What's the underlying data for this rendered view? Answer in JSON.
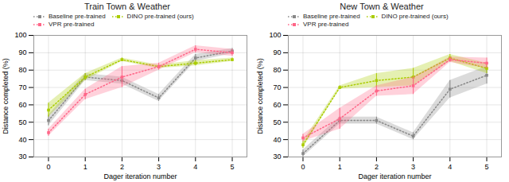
{
  "chart_data": [
    {
      "type": "line",
      "title": "Train Town & Weather",
      "xlabel": "Dager iteration number",
      "ylabel": "Distance completed (%)",
      "x": [
        0,
        1,
        2,
        3,
        4,
        5
      ],
      "series": [
        {
          "name": "Baseline pre-trained",
          "color": "#888888",
          "marker": "square",
          "line_style": "dotted",
          "values": [
            51,
            76,
            74,
            64,
            87,
            91
          ],
          "errors": [
            3,
            2,
            2,
            2,
            2,
            1.5
          ]
        },
        {
          "name": "DINO pre-trained (ours)",
          "color": "#aacc00",
          "marker": "square",
          "line_style": "dotted",
          "values": [
            57,
            76,
            86,
            82,
            84,
            86
          ],
          "errors": [
            4,
            2,
            1,
            1,
            1.5,
            1
          ]
        },
        {
          "name": "VPR pre-trained",
          "color": "#ff6688",
          "marker": "square",
          "line_style": "dotted",
          "values": [
            44,
            66,
            76,
            82,
            92,
            90
          ],
          "errors": [
            2,
            3,
            6,
            2,
            2,
            2
          ]
        }
      ],
      "xlim": [
        -0.4,
        5.4
      ],
      "xticks": [
        0,
        1,
        2,
        3,
        4,
        5
      ],
      "ylim": [
        30,
        100
      ],
      "yticks": [
        30,
        40,
        50,
        60,
        70,
        80,
        90,
        100
      ],
      "grid": true,
      "legend": "upper left"
    },
    {
      "type": "line",
      "title": "New Town & Weather",
      "xlabel": "Dager iteration number",
      "ylabel": "Distance completed (%)",
      "x": [
        0,
        1,
        2,
        3,
        4,
        5
      ],
      "series": [
        {
          "name": "Baseline pre-trained",
          "color": "#888888",
          "marker": "square",
          "line_style": "dotted",
          "values": [
            32,
            51,
            51,
            42,
            69,
            77
          ],
          "errors": [
            2,
            2,
            2,
            2,
            5,
            5
          ]
        },
        {
          "name": "DINO pre-trained (ours)",
          "color": "#aacc00",
          "marker": "square",
          "line_style": "dotted",
          "values": [
            37,
            70,
            74,
            76,
            87,
            81
          ],
          "errors": [
            2,
            1,
            4,
            5,
            2,
            3
          ]
        },
        {
          "name": "VPR pre-trained",
          "color": "#ff6688",
          "marker": "square",
          "line_style": "dotted",
          "values": [
            41,
            52,
            68,
            71,
            86,
            84
          ],
          "errors": [
            2,
            6,
            3,
            5,
            1.5,
            3
          ]
        }
      ],
      "xlim": [
        -0.4,
        5.4
      ],
      "xticks": [
        0,
        1,
        2,
        3,
        4,
        5
      ],
      "ylim": [
        30,
        100
      ],
      "yticks": [
        30,
        40,
        50,
        60,
        70,
        80,
        90,
        100
      ],
      "grid": true,
      "legend": "upper left"
    }
  ]
}
